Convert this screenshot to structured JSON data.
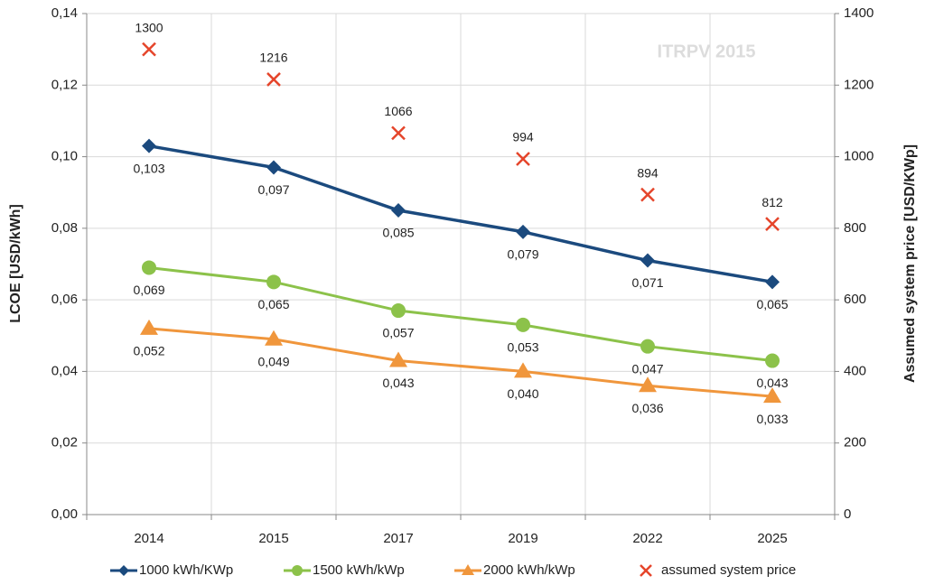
{
  "chart_data": {
    "type": "line",
    "annotation": "ITRPV 2015",
    "y_label": "LCOE [USD/kWh]",
    "y2_label": "Assumed system price [USD/KWp]",
    "categories": [
      "2014",
      "2015",
      "2017",
      "2019",
      "2022",
      "2025"
    ],
    "ylim": [
      0,
      0.14
    ],
    "yticks": [
      {
        "value": 0,
        "label": "0,00"
      },
      {
        "value": 0.02,
        "label": "0,02"
      },
      {
        "value": 0.04,
        "label": "0,04"
      },
      {
        "value": 0.06,
        "label": "0,06"
      },
      {
        "value": 0.08,
        "label": "0,08"
      },
      {
        "value": 0.1,
        "label": "0,10"
      },
      {
        "value": 0.12,
        "label": "0,12"
      },
      {
        "value": 0.14,
        "label": "0,14"
      }
    ],
    "y2lim": [
      0,
      1400
    ],
    "y2ticks": [
      0,
      200,
      400,
      600,
      800,
      1000,
      1200,
      1400
    ],
    "grid": true,
    "legend": "bottom",
    "series": [
      {
        "name": "1000 kWh/KWp",
        "color": "#1b4a7e",
        "marker": "diamond",
        "line": true,
        "values": [
          0.103,
          0.097,
          0.085,
          0.079,
          0.071,
          0.065
        ],
        "value_labels": [
          "0,103",
          "0,097",
          "0,085",
          "0,079",
          "0,071",
          "0,065"
        ]
      },
      {
        "name": "1500 kWh/kWp",
        "color": "#8cc24a",
        "marker": "circle",
        "line": true,
        "values": [
          0.069,
          0.065,
          0.057,
          0.053,
          0.047,
          0.043
        ],
        "value_labels": [
          "0,069",
          "0,065",
          "0,057",
          "0,053",
          "0,047",
          "0,043"
        ]
      },
      {
        "name": "2000 kWh/kWp",
        "color": "#f0963c",
        "marker": "triangle",
        "line": true,
        "values": [
          0.052,
          0.049,
          0.043,
          0.04,
          0.036,
          0.033
        ],
        "value_labels": [
          "0,052",
          "0,049",
          "0,043",
          "0,040",
          "0,036",
          "0,033"
        ]
      },
      {
        "name": "assumed system price",
        "color": "#e5452b",
        "marker": "x",
        "line": false,
        "axis": "y2",
        "values": [
          1300,
          1216,
          1066,
          994,
          894,
          812
        ]
      }
    ]
  }
}
